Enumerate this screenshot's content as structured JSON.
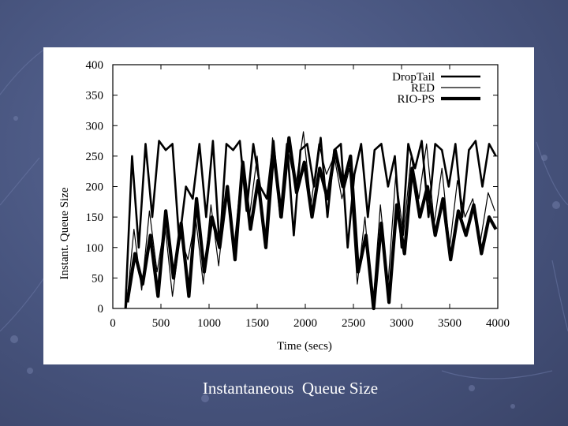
{
  "caption": "Instantaneous  Queue Size",
  "chart_data": {
    "type": "line",
    "title": "",
    "xlabel": "Time (secs)",
    "ylabel": "Instant. Queue Size",
    "xlim": [
      0,
      4000
    ],
    "ylim": [
      0,
      400
    ],
    "xticks": [
      0,
      500,
      1000,
      1500,
      2000,
      2500,
      3000,
      3500,
      4000
    ],
    "yticks": [
      0,
      50,
      100,
      150,
      200,
      250,
      300,
      350,
      400
    ],
    "grid": false,
    "legend_position": "top-right",
    "series": [
      {
        "name": "DropTail",
        "color": "#000000",
        "x": [
          130,
          200,
          270,
          340,
          410,
          480,
          550,
          620,
          690,
          760,
          830,
          900,
          970,
          1040,
          1110,
          1180,
          1250,
          1320,
          1390,
          1460,
          1530,
          1600,
          1670,
          1740,
          1810,
          1880,
          1950,
          2020,
          2090,
          2160,
          2230,
          2300,
          2370,
          2440,
          2510,
          2580,
          2650,
          2720,
          2790,
          2860,
          2930,
          3000,
          3070,
          3140,
          3210,
          3280,
          3350,
          3420,
          3490,
          3560,
          3630,
          3700,
          3770,
          3840,
          3910,
          3980
        ],
        "y": [
          0,
          250,
          100,
          270,
          150,
          275,
          260,
          270,
          110,
          200,
          180,
          270,
          150,
          275,
          100,
          270,
          260,
          275,
          160,
          270,
          200,
          180,
          275,
          150,
          270,
          120,
          260,
          270,
          200,
          280,
          150,
          260,
          270,
          100,
          220,
          270,
          150,
          260,
          270,
          200,
          250,
          100,
          270,
          230,
          275,
          150,
          270,
          260,
          200,
          270,
          150,
          260,
          275,
          200,
          270,
          250
        ]
      },
      {
        "name": "RED",
        "color": "#000000",
        "x": [
          140,
          220,
          300,
          380,
          460,
          540,
          620,
          700,
          780,
          860,
          940,
          1020,
          1100,
          1180,
          1260,
          1340,
          1420,
          1500,
          1580,
          1660,
          1740,
          1820,
          1900,
          1980,
          2060,
          2140,
          2220,
          2300,
          2380,
          2460,
          2540,
          2620,
          2700,
          2780,
          2860,
          2940,
          3020,
          3100,
          3180,
          3260,
          3340,
          3420,
          3500,
          3580,
          3660,
          3740,
          3820,
          3900,
          3970
        ],
        "y": [
          0,
          130,
          30,
          160,
          60,
          140,
          20,
          120,
          80,
          150,
          40,
          170,
          70,
          200,
          100,
          230,
          150,
          250,
          110,
          280,
          160,
          260,
          200,
          290,
          170,
          270,
          220,
          250,
          180,
          230,
          40,
          150,
          0,
          170,
          40,
          220,
          120,
          250,
          180,
          270,
          140,
          230,
          100,
          210,
          150,
          180,
          110,
          190,
          160
        ]
      },
      {
        "name": "RIO-PS",
        "color": "#000000",
        "x": [
          150,
          230,
          310,
          390,
          470,
          550,
          630,
          710,
          790,
          870,
          950,
          1030,
          1110,
          1190,
          1270,
          1350,
          1430,
          1510,
          1590,
          1670,
          1750,
          1830,
          1910,
          1990,
          2070,
          2150,
          2230,
          2310,
          2390,
          2470,
          2550,
          2630,
          2710,
          2790,
          2870,
          2950,
          3030,
          3110,
          3190,
          3270,
          3350,
          3430,
          3510,
          3590,
          3670,
          3750,
          3830,
          3910,
          3980
        ],
        "y": [
          10,
          90,
          40,
          120,
          20,
          160,
          50,
          140,
          20,
          180,
          60,
          150,
          100,
          200,
          80,
          240,
          130,
          210,
          100,
          260,
          150,
          280,
          190,
          240,
          150,
          230,
          180,
          260,
          200,
          250,
          60,
          120,
          0,
          140,
          10,
          170,
          90,
          230,
          150,
          200,
          120,
          180,
          80,
          160,
          120,
          170,
          90,
          150,
          130
        ]
      }
    ]
  }
}
